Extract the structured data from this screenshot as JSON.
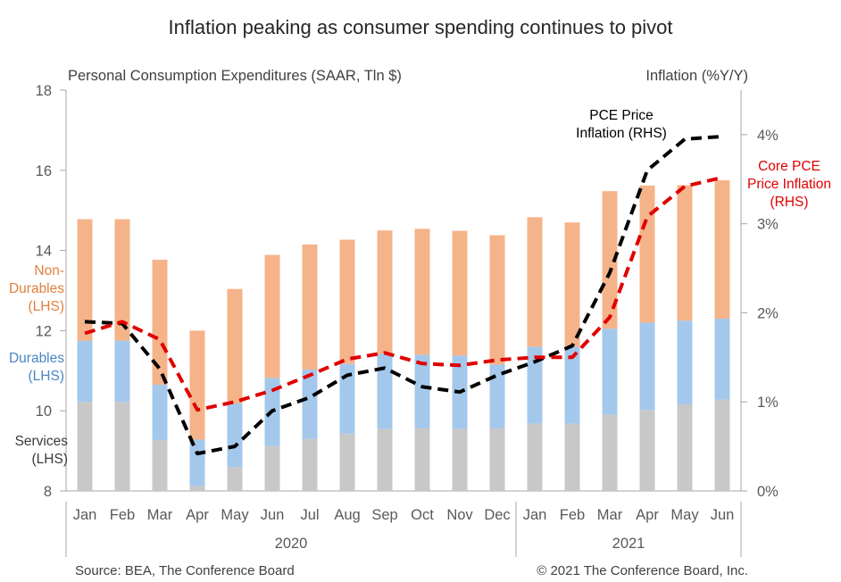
{
  "chart_data": {
    "type": "bar",
    "title": "Inflation peaking as consumer spending continues to pivot",
    "left_axis_label": "Personal Consumption Expenditures (SAAR, Tln $)",
    "right_axis_label": "Inflation (%Y/Y)",
    "source": "Source: BEA, The Conference Board",
    "copyright": "© 2021 The Conference Board, Inc.",
    "categories": [
      "Jan",
      "Feb",
      "Mar",
      "Apr",
      "May",
      "Jun",
      "Jul",
      "Aug",
      "Sep",
      "Oct",
      "Nov",
      "Dec",
      "Jan",
      "Feb",
      "Mar",
      "Apr",
      "May",
      "Jun"
    ],
    "year_groups": [
      {
        "label": "2020",
        "count": 12
      },
      {
        "label": "2021",
        "count": 6
      }
    ],
    "y_left": {
      "min": 8,
      "max": 18,
      "ticks": [
        "8",
        "10",
        "12",
        "14",
        "16",
        "18"
      ]
    },
    "y_right": {
      "min": 0,
      "max": 4.5,
      "ticks": [
        "0%",
        "1%",
        "2%",
        "3%",
        "4%"
      ]
    },
    "stacked_series": [
      {
        "name": "Services (LHS)",
        "color": "#c8c8c8",
        "values": [
          10.22,
          10.22,
          9.27,
          8.12,
          8.6,
          9.12,
          9.3,
          9.43,
          9.55,
          9.57,
          9.55,
          9.57,
          9.68,
          9.68,
          9.9,
          10.02,
          10.16,
          10.28
        ]
      },
      {
        "name": "Durables (LHS)",
        "color": "#a3c8eb",
        "values": [
          1.53,
          1.53,
          1.38,
          1.16,
          1.58,
          1.7,
          1.73,
          1.74,
          1.87,
          1.83,
          1.83,
          1.58,
          1.92,
          1.92,
          2.15,
          2.18,
          2.09,
          2.02
        ]
      },
      {
        "name": "Non-Durables (LHS)",
        "color": "#f5b38a",
        "values": [
          3.03,
          3.03,
          3.12,
          2.72,
          2.86,
          3.07,
          3.12,
          3.1,
          3.08,
          3.14,
          3.11,
          3.23,
          3.23,
          3.1,
          3.43,
          3.42,
          3.38,
          3.45
        ]
      }
    ],
    "line_series": [
      {
        "name": "PCE Price Inflation (RHS)",
        "color": "#000000",
        "values": [
          1.9,
          1.88,
          1.37,
          0.42,
          0.5,
          0.9,
          1.05,
          1.3,
          1.38,
          1.17,
          1.11,
          1.3,
          1.45,
          1.63,
          2.45,
          3.6,
          3.95,
          3.98
        ]
      },
      {
        "name": "Core PCE Price Inflation (RHS)",
        "color": "#e00000",
        "values": [
          1.77,
          1.9,
          1.7,
          0.91,
          1.0,
          1.13,
          1.3,
          1.48,
          1.55,
          1.43,
          1.41,
          1.47,
          1.5,
          1.5,
          1.95,
          3.08,
          3.42,
          3.52
        ]
      }
    ],
    "annotations": {
      "non_durables": [
        "Non-",
        "Durables",
        "(LHS)"
      ],
      "durables": [
        "Durables",
        "(LHS)"
      ],
      "services": [
        "Services",
        "(LHS)"
      ],
      "pce": [
        "PCE Price",
        "Inflation (RHS)"
      ],
      "core_pce": [
        "Core PCE",
        "Price Inflation",
        "(RHS)"
      ]
    },
    "colors": {
      "nondurables_text": "#e0813d",
      "durables_text": "#4a86c5",
      "services_text": "#3a3a3a",
      "pce_text": "#000000",
      "core_text": "#e00000",
      "axis": "#a6a6a6",
      "tick_text": "#595959"
    }
  }
}
